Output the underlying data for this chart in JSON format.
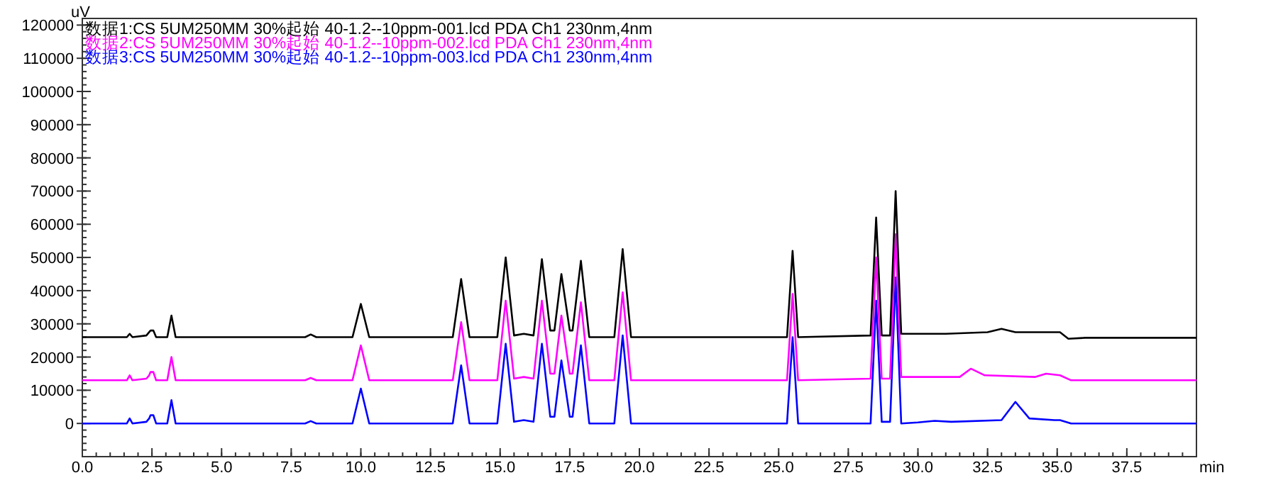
{
  "chart_data": {
    "type": "line",
    "xlabel": "min",
    "ylabel": "uV",
    "legend": "top left",
    "grid": false,
    "marker": "none",
    "line_style": "solid",
    "xlim": [
      0,
      40
    ],
    "ylim": [
      -10000,
      122000
    ],
    "xticks": [
      {
        "value": 0,
        "label": "0.0"
      },
      {
        "value": 2.5,
        "label": "2.5"
      },
      {
        "value": 5,
        "label": "5.0"
      },
      {
        "value": 7.5,
        "label": "7.5"
      },
      {
        "value": 10,
        "label": "10.0"
      },
      {
        "value": 12.5,
        "label": "12.5"
      },
      {
        "value": 15,
        "label": "15.0"
      },
      {
        "value": 17.5,
        "label": "17.5"
      },
      {
        "value": 20,
        "label": "20.0"
      },
      {
        "value": 22.5,
        "label": "22.5"
      },
      {
        "value": 25,
        "label": "25.0"
      },
      {
        "value": 27.5,
        "label": "27.5"
      },
      {
        "value": 30,
        "label": "30.0"
      },
      {
        "value": 32.5,
        "label": "32.5"
      },
      {
        "value": 35,
        "label": "35.0"
      },
      {
        "value": 37.5,
        "label": "37.5"
      }
    ],
    "yticks": [
      0,
      10000,
      20000,
      30000,
      40000,
      50000,
      60000,
      70000,
      80000,
      90000,
      100000,
      110000,
      120000
    ],
    "series": [
      {
        "name": "数据1:CS 5UM250MM 30%起始 40-1.2--10ppm-001.lcd PDA Ch1 230nm,4nm",
        "color": "#000000",
        "x": [
          0,
          1.6,
          1.7,
          1.8,
          2.3,
          2.4,
          2.45,
          2.55,
          2.65,
          3.05,
          3.2,
          3.35,
          4.5,
          8.0,
          8.2,
          8.4,
          9.7,
          10.0,
          10.3,
          13.3,
          13.6,
          13.9,
          14.9,
          15.2,
          15.5,
          15.85,
          16.2,
          16.5,
          16.8,
          16.95,
          17.2,
          17.5,
          17.6,
          17.9,
          18.2,
          19.1,
          19.4,
          19.7,
          25.3,
          25.5,
          25.7,
          28.3,
          28.5,
          28.7,
          29.0,
          29.2,
          29.4,
          31.0,
          32.5,
          33.0,
          33.5,
          34.9,
          35.1,
          35.4,
          36.0,
          37.5,
          40
        ],
        "values": [
          26000,
          26000,
          27000,
          26000,
          26500,
          27500,
          28000,
          28000,
          26000,
          26000,
          32500,
          26000,
          26000,
          26000,
          26800,
          26000,
          26000,
          36000,
          26000,
          26000,
          43500,
          26000,
          26000,
          50000,
          26500,
          27000,
          26500,
          49500,
          28000,
          28000,
          45000,
          28000,
          28000,
          49000,
          26000,
          26000,
          52500,
          26000,
          26000,
          52000,
          26000,
          26500,
          62000,
          26500,
          26500,
          70000,
          27000,
          27000,
          27500,
          28500,
          27500,
          27500,
          27500,
          25500,
          25800,
          25800,
          25800
        ]
      },
      {
        "name": "数据2:CS 5UM250MM 30%起始 40-1.2--10ppm-002.lcd PDA Ch1 230nm,4nm",
        "color": "#ff00ff",
        "x": [
          0,
          1.6,
          1.7,
          1.8,
          2.3,
          2.4,
          2.45,
          2.55,
          2.65,
          3.05,
          3.2,
          3.35,
          8.0,
          8.2,
          8.4,
          9.7,
          10.0,
          10.3,
          13.3,
          13.6,
          13.9,
          14.9,
          15.2,
          15.5,
          15.85,
          16.2,
          16.5,
          16.8,
          16.95,
          17.2,
          17.5,
          17.6,
          17.9,
          18.2,
          19.1,
          19.4,
          19.7,
          25.3,
          25.5,
          25.7,
          28.3,
          28.5,
          28.7,
          29.0,
          29.2,
          29.4,
          31.5,
          31.9,
          32.4,
          34.2,
          34.6,
          35.1,
          35.5,
          37.5,
          40
        ],
        "values": [
          13000,
          13000,
          14500,
          13000,
          13500,
          14500,
          15500,
          15500,
          13000,
          13000,
          20000,
          13000,
          13000,
          13700,
          13000,
          13000,
          23500,
          13000,
          13000,
          30500,
          13000,
          13000,
          37000,
          13500,
          14000,
          13500,
          37000,
          15000,
          15000,
          32500,
          15000,
          15000,
          36500,
          13000,
          13000,
          39500,
          13000,
          13000,
          39000,
          13000,
          13500,
          50000,
          13500,
          13500,
          57000,
          14000,
          14000,
          16500,
          14500,
          14000,
          15000,
          14500,
          13000,
          13000,
          13000
        ]
      },
      {
        "name": "数据3:CS 5UM250MM 30%起始 40-1.2--10ppm-003.lcd PDA Ch1 230nm,4nm",
        "color": "#0000ff",
        "x": [
          0,
          1.6,
          1.7,
          1.8,
          2.3,
          2.4,
          2.45,
          2.55,
          2.65,
          3.05,
          3.2,
          3.35,
          8.0,
          8.2,
          8.4,
          9.7,
          10.0,
          10.3,
          13.3,
          13.6,
          13.9,
          14.9,
          15.2,
          15.5,
          15.85,
          16.2,
          16.5,
          16.8,
          16.95,
          17.2,
          17.5,
          17.6,
          17.9,
          18.2,
          19.1,
          19.4,
          19.7,
          25.3,
          25.5,
          25.7,
          28.3,
          28.5,
          28.7,
          29.0,
          29.2,
          29.4,
          30.0,
          30.6,
          31.2,
          33.0,
          33.5,
          34.0,
          34.9,
          35.1,
          35.5,
          37.5,
          40
        ],
        "values": [
          0,
          0,
          1500,
          0,
          500,
          1500,
          2500,
          2500,
          0,
          0,
          7000,
          0,
          0,
          700,
          0,
          0,
          10500,
          0,
          0,
          17500,
          0,
          0,
          24000,
          500,
          1000,
          500,
          24000,
          2000,
          2000,
          19000,
          2000,
          2000,
          23500,
          0,
          0,
          26500,
          0,
          0,
          26000,
          0,
          0,
          37000,
          500,
          500,
          44000,
          0,
          300,
          800,
          500,
          1000,
          6500,
          1500,
          1000,
          1000,
          0,
          0,
          0
        ]
      }
    ]
  }
}
